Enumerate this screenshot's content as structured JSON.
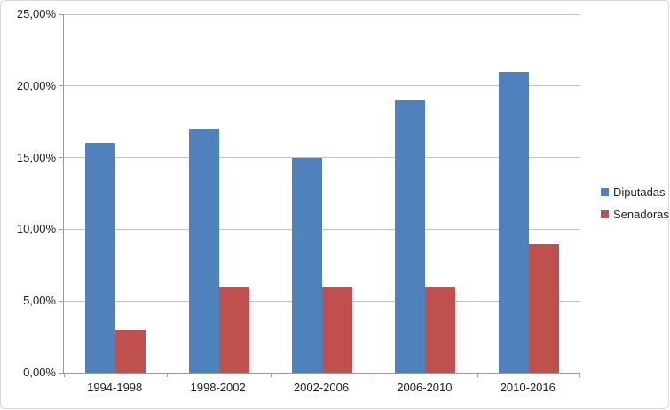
{
  "chart_data": {
    "type": "bar",
    "title": "",
    "xlabel": "",
    "ylabel": "",
    "categories": [
      "1994-1998",
      "1998-2002",
      "2002-2006",
      "2006-2010",
      "2010-2016"
    ],
    "series": [
      {
        "name": "Diputadas",
        "color": "#4F81BD",
        "values": [
          16,
          17,
          15,
          19,
          21
        ]
      },
      {
        "name": "Senadoras",
        "color": "#C0504D",
        "values": [
          3,
          6,
          6,
          6,
          9
        ]
      }
    ],
    "ylim": [
      0,
      25
    ],
    "y_tick_step": 5,
    "y_tick_labels": [
      "0,00%",
      "5,00%",
      "10,00%",
      "15,00%",
      "20,00%",
      "25,00%"
    ],
    "grid": true,
    "legend_position": "right"
  },
  "legend": {
    "items": [
      {
        "label": "Diputadas",
        "color": "#4F81BD"
      },
      {
        "label": "Senadoras",
        "color": "#C0504D"
      }
    ]
  },
  "colors": {
    "axis": "#9a9a9a",
    "gridline": "#c3c3c3",
    "text": "#1f1f1f",
    "frame_border": "#d7d7d7",
    "background": "#ffffff"
  }
}
